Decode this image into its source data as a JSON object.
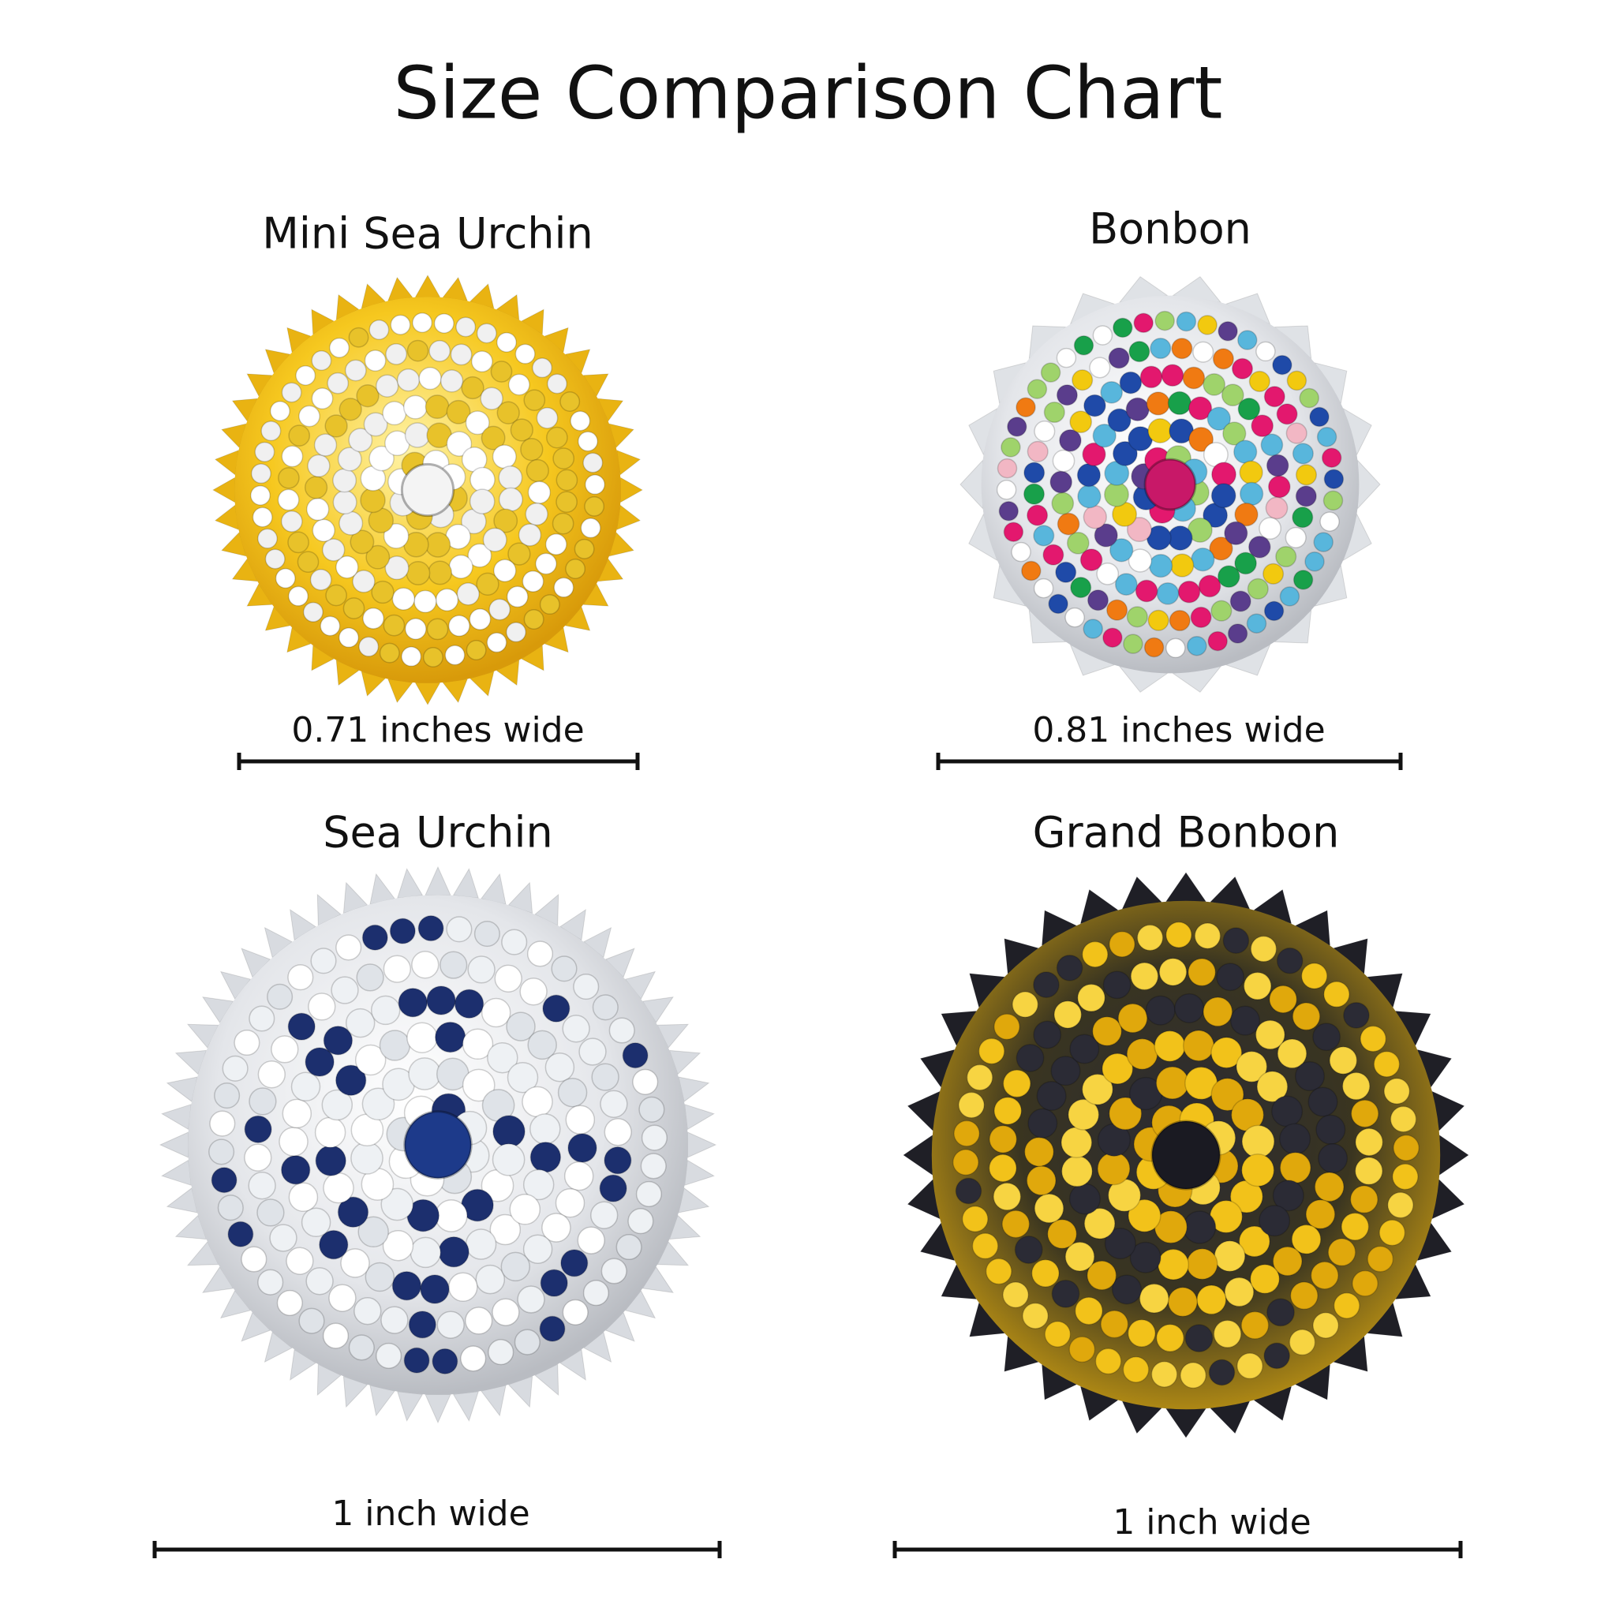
{
  "header": {
    "title": "Size Comparison Chart"
  },
  "items": [
    {
      "name": "Mini Sea Urchin",
      "width_label": "0.71 inches wide"
    },
    {
      "name": "Bonbon",
      "width_label": "0.81 inches wide"
    },
    {
      "name": "Sea Urchin",
      "width_label": "1 inch wide"
    },
    {
      "name": "Grand Bonbon",
      "width_label": "1 inch wide"
    }
  ]
}
